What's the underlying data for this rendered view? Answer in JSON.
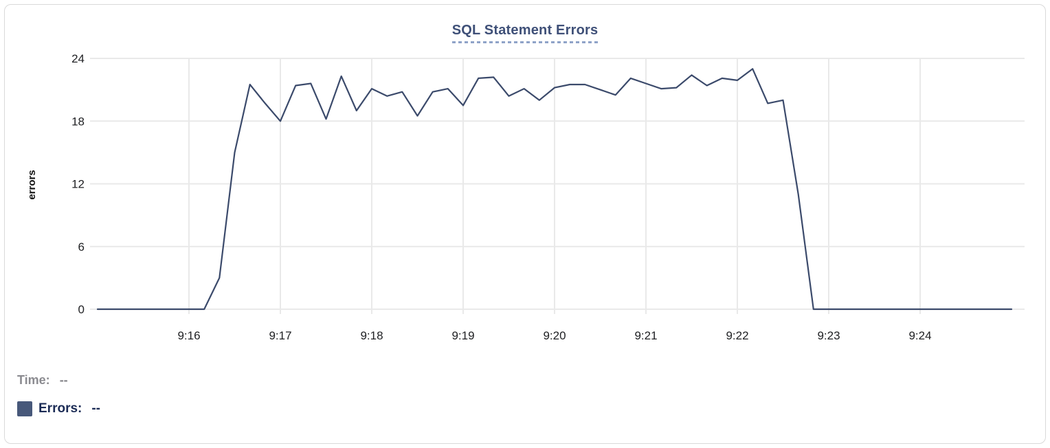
{
  "chart_data": {
    "type": "line",
    "title": "SQL Statement Errors",
    "xlabel": "",
    "ylabel": "errors",
    "x_ticks": [
      "9:16",
      "9:17",
      "9:18",
      "9:19",
      "9:20",
      "9:21",
      "9:22",
      "9:23",
      "9:24"
    ],
    "y_ticks": [
      0,
      6,
      12,
      18,
      24
    ],
    "ylim": [
      0,
      24
    ],
    "x_start": "9:15:00",
    "x_end": "9:25:00",
    "interval_seconds": 10,
    "grid": true,
    "legend_position": "bottom-left",
    "series": [
      {
        "name": "Errors",
        "color": "#3b4a6b",
        "values": [
          0,
          0,
          0,
          0,
          0,
          0,
          0,
          0,
          3,
          15,
          21.5,
          19.7,
          18,
          21.4,
          21.6,
          18.2,
          22.3,
          19,
          21.1,
          20.4,
          20.8,
          18.5,
          20.8,
          21.1,
          19.5,
          22.1,
          22.2,
          20.4,
          21.1,
          20,
          21.2,
          21.5,
          21.5,
          21,
          20.5,
          22.1,
          21.6,
          21.1,
          21.2,
          22.4,
          21.4,
          22.1,
          21.9,
          23,
          19.7,
          20,
          11,
          0,
          0,
          0,
          0,
          0,
          0,
          0,
          0,
          0,
          0,
          0,
          0,
          0,
          0
        ]
      }
    ]
  },
  "tooltip_readout": {
    "time_label": "Time:",
    "time_value": "--",
    "errors_label": "Errors:",
    "errors_value": "--"
  },
  "colors": {
    "title": "#3f5078",
    "title_underline": "#8fa3c8",
    "line": "#3b4a6b",
    "swatch": "#47587a",
    "errors_label": "#1b2b55",
    "time_label": "#8b8b90",
    "time_value": "#85858a",
    "tick_label": "#202124",
    "gridline": "#e9e9e9",
    "card_border": "#d9d9d9"
  }
}
